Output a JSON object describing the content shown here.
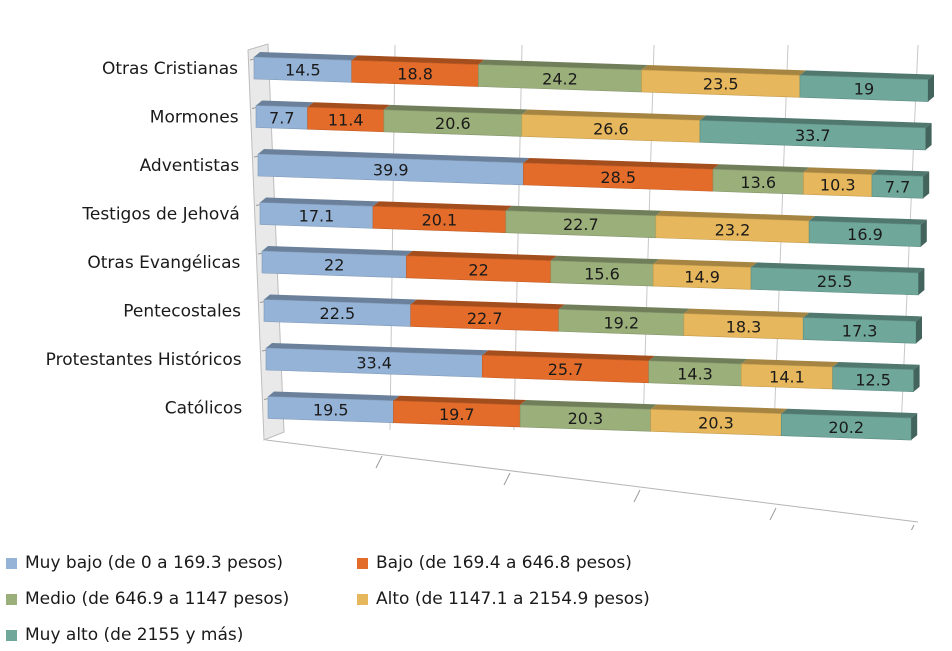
{
  "chart_data": {
    "type": "bar",
    "orientation": "horizontal",
    "stacked": "100%",
    "style": "3d",
    "categories": [
      "Otras Cristianas",
      "Mormones",
      "Adventistas",
      "Testigos de Jehová",
      "Otras Evangélicas",
      "Pentecostales",
      "Protestantes Históricos",
      "Católicos"
    ],
    "series": [
      {
        "name": "Muy bajo (de 0 a 169.3 pesos)",
        "color": "#95b3d7",
        "values": [
          14.5,
          7.7,
          39.9,
          17.1,
          22,
          22.5,
          33.4,
          19.5
        ]
      },
      {
        "name": "Bajo (de 169.4 a 646.8 pesos)",
        "color": "#e46c2a",
        "values": [
          18.8,
          11.4,
          28.5,
          20.1,
          22,
          22.7,
          25.7,
          19.7
        ]
      },
      {
        "name": "Medio (de 646.9 a 1147 pesos)",
        "color": "#9baf7b",
        "values": [
          24.2,
          20.6,
          13.6,
          22.7,
          15.6,
          19.2,
          14.3,
          20.3
        ]
      },
      {
        "name": "Alto (de 1147.1 a 2154.9 pesos)",
        "color": "#e6b75c",
        "values": [
          23.5,
          26.6,
          10.3,
          23.2,
          14.9,
          18.3,
          14.1,
          20.3
        ]
      },
      {
        "name": "Muy alto (de 2155 y más)",
        "color": "#6fa79a",
        "values": [
          19,
          33.7,
          7.7,
          16.9,
          25.5,
          17.3,
          12.5,
          20.2
        ]
      }
    ],
    "xlim": [
      0,
      100
    ],
    "grid": true,
    "legend_position": "bottom"
  }
}
